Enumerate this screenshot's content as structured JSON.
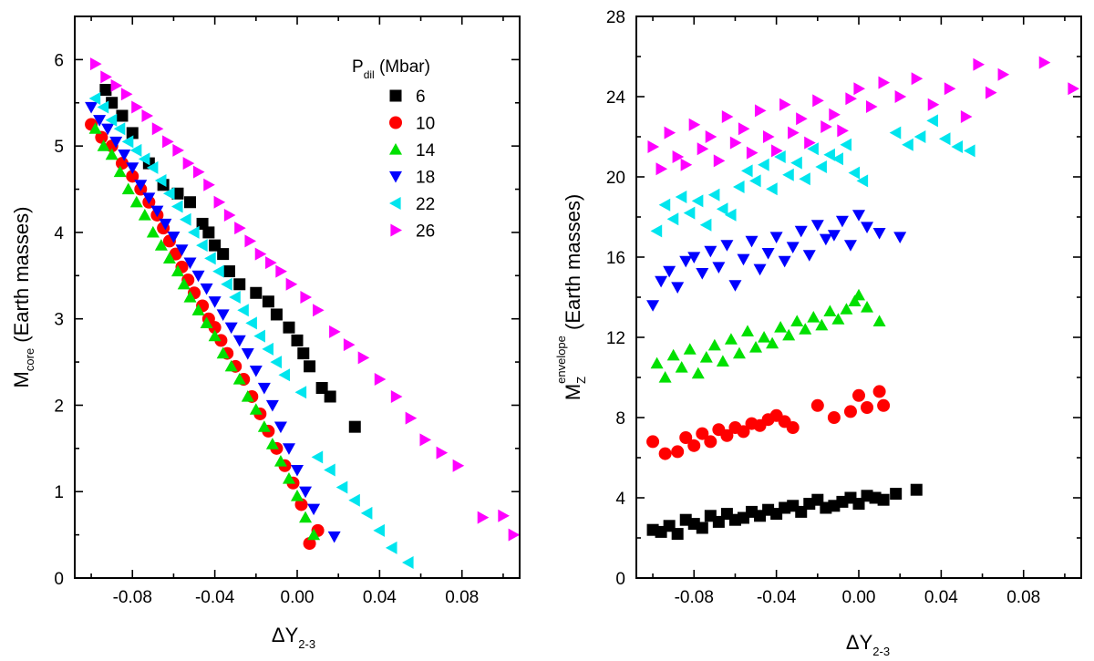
{
  "chart_data": [
    {
      "type": "scatter",
      "panel": "left",
      "title": "",
      "xlabel": {
        "main": "ΔY",
        "sub": "2-3"
      },
      "ylabel": {
        "main": "M",
        "sub": "core",
        "rest": " (Earth masses)"
      },
      "xlim": [
        -0.108,
        0.108
      ],
      "ylim": [
        0,
        6.5
      ],
      "xticks": [
        -0.08,
        -0.04,
        0.0,
        0.04,
        0.08
      ],
      "xtick_labels": [
        "-0.08",
        "-0.04",
        "0.00",
        "0.04",
        "0.08"
      ],
      "xticks_minor": [
        -0.1,
        -0.06,
        -0.02,
        0.02,
        0.06,
        0.1
      ],
      "yticks": [
        0,
        1,
        2,
        3,
        4,
        5,
        6
      ],
      "ytick_labels": [
        "0",
        "1",
        "2",
        "3",
        "4",
        "5",
        "6"
      ],
      "yticks_minor": [
        0.5,
        1.5,
        2.5,
        3.5,
        4.5,
        5.5,
        6.5
      ],
      "legend": {
        "title_main": "P",
        "title_sub": "dil",
        "title_rest": " (Mbar)",
        "position": "top-right",
        "entries": [
          "6",
          "10",
          "14",
          "18",
          "22",
          "26"
        ]
      },
      "series": [
        {
          "name": "6",
          "marker": "square",
          "color": "#000000",
          "x": [
            -0.093,
            -0.09,
            -0.085,
            -0.08,
            -0.072,
            -0.065,
            -0.058,
            -0.052,
            -0.046,
            -0.043,
            -0.04,
            -0.036,
            -0.033,
            -0.028,
            -0.02,
            -0.014,
            -0.01,
            -0.004,
            0.0,
            0.003,
            0.006,
            0.012,
            0.016,
            0.028
          ],
          "y": [
            5.65,
            5.5,
            5.35,
            5.15,
            4.8,
            4.55,
            4.45,
            4.35,
            4.1,
            4.0,
            3.85,
            3.75,
            3.55,
            3.4,
            3.3,
            3.2,
            3.05,
            2.9,
            2.75,
            2.6,
            2.45,
            2.2,
            2.1,
            1.75
          ]
        },
        {
          "name": "10",
          "marker": "circle",
          "color": "#ff0000",
          "x": [
            -0.1,
            -0.095,
            -0.09,
            -0.085,
            -0.08,
            -0.076,
            -0.072,
            -0.068,
            -0.065,
            -0.062,
            -0.059,
            -0.056,
            -0.053,
            -0.05,
            -0.046,
            -0.043,
            -0.04,
            -0.037,
            -0.034,
            -0.03,
            -0.026,
            -0.022,
            -0.018,
            -0.014,
            -0.01,
            -0.006,
            -0.002,
            0.002,
            0.006,
            0.01
          ],
          "y": [
            5.25,
            5.1,
            5.0,
            4.8,
            4.65,
            4.5,
            4.35,
            4.2,
            4.05,
            3.9,
            3.75,
            3.6,
            3.45,
            3.3,
            3.15,
            3.0,
            2.9,
            2.75,
            2.6,
            2.45,
            2.3,
            2.1,
            1.9,
            1.7,
            1.5,
            1.3,
            1.1,
            0.85,
            0.4,
            0.55
          ]
        },
        {
          "name": "14",
          "marker": "triangle-up",
          "color": "#00e000",
          "x": [
            -0.098,
            -0.094,
            -0.09,
            -0.086,
            -0.082,
            -0.078,
            -0.074,
            -0.07,
            -0.066,
            -0.062,
            -0.058,
            -0.055,
            -0.052,
            -0.048,
            -0.044,
            -0.04,
            -0.036,
            -0.032,
            -0.028,
            -0.024,
            -0.02,
            -0.016,
            -0.012,
            -0.008,
            -0.004,
            0.0,
            0.004,
            0.008
          ],
          "y": [
            5.2,
            5.0,
            4.9,
            4.7,
            4.5,
            4.35,
            4.2,
            4.0,
            3.85,
            3.7,
            3.55,
            3.4,
            3.25,
            3.1,
            2.95,
            2.8,
            2.6,
            2.45,
            2.3,
            2.1,
            1.95,
            1.75,
            1.55,
            1.35,
            1.15,
            0.95,
            0.7,
            0.5
          ]
        },
        {
          "name": "18",
          "marker": "triangle-down",
          "color": "#0000ff",
          "x": [
            -0.1,
            -0.096,
            -0.092,
            -0.088,
            -0.084,
            -0.08,
            -0.076,
            -0.072,
            -0.068,
            -0.064,
            -0.06,
            -0.056,
            -0.052,
            -0.048,
            -0.044,
            -0.04,
            -0.036,
            -0.032,
            -0.028,
            -0.024,
            -0.02,
            -0.016,
            -0.012,
            -0.008,
            -0.004,
            0.0,
            0.004,
            0.008,
            0.018
          ],
          "y": [
            5.45,
            5.3,
            5.2,
            5.05,
            4.9,
            4.75,
            4.55,
            4.4,
            4.25,
            4.1,
            3.95,
            3.8,
            3.65,
            3.5,
            3.35,
            3.2,
            3.05,
            2.9,
            2.75,
            2.6,
            2.4,
            2.2,
            2.0,
            1.75,
            1.5,
            1.25,
            1.0,
            0.8,
            0.48
          ]
        },
        {
          "name": "22",
          "marker": "triangle-left",
          "color": "#00e5ee",
          "x": [
            -0.098,
            -0.094,
            -0.09,
            -0.086,
            -0.082,
            -0.078,
            -0.074,
            -0.07,
            -0.066,
            -0.062,
            -0.058,
            -0.054,
            -0.05,
            -0.046,
            -0.042,
            -0.038,
            -0.034,
            -0.03,
            -0.026,
            -0.022,
            -0.018,
            -0.014,
            -0.01,
            -0.006,
            0.002,
            0.01,
            0.016,
            0.022,
            0.028,
            0.034,
            0.04,
            0.046,
            0.054
          ],
          "y": [
            5.55,
            5.45,
            5.3,
            5.2,
            5.05,
            4.95,
            4.85,
            4.75,
            4.6,
            4.45,
            4.3,
            4.15,
            4.0,
            3.85,
            3.7,
            3.55,
            3.4,
            3.25,
            3.1,
            2.95,
            2.8,
            2.65,
            2.5,
            2.35,
            2.15,
            1.4,
            1.25,
            1.05,
            0.9,
            0.75,
            0.55,
            0.35,
            0.18
          ]
        },
        {
          "name": "26",
          "marker": "triangle-right",
          "color": "#ff00ff",
          "x": [
            -0.098,
            -0.093,
            -0.088,
            -0.083,
            -0.078,
            -0.073,
            -0.068,
            -0.063,
            -0.058,
            -0.053,
            -0.048,
            -0.043,
            -0.038,
            -0.033,
            -0.028,
            -0.023,
            -0.018,
            -0.013,
            -0.008,
            -0.003,
            0.004,
            0.01,
            0.018,
            0.025,
            0.032,
            0.04,
            0.048,
            0.055,
            0.062,
            0.07,
            0.078,
            0.09,
            0.1,
            0.105
          ],
          "y": [
            5.95,
            5.8,
            5.7,
            5.6,
            5.45,
            5.35,
            5.2,
            5.05,
            4.95,
            4.8,
            4.7,
            4.55,
            4.35,
            4.2,
            4.05,
            3.9,
            3.75,
            3.65,
            3.55,
            3.4,
            3.25,
            3.1,
            2.85,
            2.7,
            2.55,
            2.3,
            2.1,
            1.85,
            1.6,
            1.45,
            1.3,
            0.7,
            0.72,
            0.5
          ]
        }
      ]
    },
    {
      "type": "scatter",
      "panel": "right",
      "title": "",
      "xlabel": {
        "main": "ΔY",
        "sub": "2-3"
      },
      "ylabel": {
        "main": "M",
        "sub": "Z",
        "sup": "envelope",
        "rest": " (Earth masses)"
      },
      "xlim": [
        -0.108,
        0.108
      ],
      "ylim": [
        0,
        28
      ],
      "xticks": [
        -0.08,
        -0.04,
        0.0,
        0.04,
        0.08
      ],
      "xtick_labels": [
        "-0.08",
        "-0.04",
        "0.00",
        "0.04",
        "0.08"
      ],
      "xticks_minor": [
        -0.1,
        -0.06,
        -0.02,
        0.02,
        0.06,
        0.1
      ],
      "yticks": [
        0,
        4,
        8,
        12,
        16,
        20,
        24,
        28
      ],
      "ytick_labels": [
        "0",
        "4",
        "8",
        "12",
        "16",
        "20",
        "24",
        "28"
      ],
      "yticks_minor": [
        2,
        6,
        10,
        14,
        18,
        22,
        26
      ],
      "series": [
        {
          "name": "6",
          "marker": "square",
          "color": "#000000",
          "x": [
            -0.1,
            -0.096,
            -0.092,
            -0.088,
            -0.084,
            -0.08,
            -0.076,
            -0.072,
            -0.068,
            -0.064,
            -0.06,
            -0.056,
            -0.052,
            -0.048,
            -0.044,
            -0.04,
            -0.036,
            -0.032,
            -0.028,
            -0.024,
            -0.02,
            -0.016,
            -0.012,
            -0.008,
            -0.004,
            0.0,
            0.004,
            0.008,
            0.012,
            0.018,
            0.028
          ],
          "y": [
            2.4,
            2.3,
            2.6,
            2.2,
            2.9,
            2.7,
            2.5,
            3.1,
            2.8,
            3.2,
            2.9,
            3.0,
            3.3,
            3.1,
            3.4,
            3.2,
            3.5,
            3.6,
            3.3,
            3.7,
            3.9,
            3.5,
            3.6,
            3.8,
            4.0,
            3.7,
            4.1,
            4.0,
            3.9,
            4.2,
            4.4
          ]
        },
        {
          "name": "10",
          "marker": "circle",
          "color": "#ff0000",
          "x": [
            -0.1,
            -0.094,
            -0.088,
            -0.084,
            -0.08,
            -0.076,
            -0.072,
            -0.068,
            -0.064,
            -0.06,
            -0.056,
            -0.052,
            -0.048,
            -0.044,
            -0.04,
            -0.036,
            -0.032,
            -0.02,
            -0.012,
            -0.004,
            0.0,
            0.004,
            0.01,
            0.012
          ],
          "y": [
            6.8,
            6.2,
            6.3,
            7.0,
            6.6,
            7.2,
            6.8,
            7.4,
            7.1,
            7.5,
            7.3,
            7.7,
            7.6,
            7.9,
            8.1,
            7.8,
            7.5,
            8.6,
            8.0,
            8.3,
            9.1,
            8.5,
            9.3,
            8.6
          ]
        },
        {
          "name": "14",
          "marker": "triangle-up",
          "color": "#00e000",
          "x": [
            -0.098,
            -0.094,
            -0.09,
            -0.086,
            -0.082,
            -0.078,
            -0.074,
            -0.07,
            -0.066,
            -0.062,
            -0.058,
            -0.054,
            -0.05,
            -0.046,
            -0.042,
            -0.038,
            -0.034,
            -0.03,
            -0.026,
            -0.022,
            -0.018,
            -0.014,
            -0.01,
            -0.006,
            -0.002,
            0.0,
            0.004,
            0.01
          ],
          "y": [
            10.7,
            10.0,
            11.1,
            10.5,
            11.4,
            10.2,
            11.0,
            11.6,
            10.8,
            11.9,
            11.2,
            12.3,
            11.5,
            12.0,
            11.7,
            12.5,
            12.1,
            12.8,
            12.4,
            13.0,
            12.6,
            13.3,
            12.9,
            13.4,
            13.8,
            14.1,
            13.5,
            12.8
          ]
        },
        {
          "name": "18",
          "marker": "triangle-down",
          "color": "#0000ff",
          "x": [
            -0.1,
            -0.096,
            -0.092,
            -0.088,
            -0.084,
            -0.08,
            -0.076,
            -0.072,
            -0.068,
            -0.064,
            -0.06,
            -0.056,
            -0.052,
            -0.048,
            -0.044,
            -0.04,
            -0.036,
            -0.032,
            -0.028,
            -0.024,
            -0.02,
            -0.016,
            -0.012,
            -0.008,
            -0.004,
            0.0,
            0.004,
            0.01,
            0.02
          ],
          "y": [
            13.6,
            14.8,
            15.3,
            14.5,
            15.8,
            16.0,
            15.2,
            16.3,
            15.5,
            16.6,
            14.6,
            15.9,
            16.8,
            15.4,
            16.2,
            17.0,
            15.8,
            16.5,
            17.3,
            16.1,
            17.6,
            16.9,
            17.1,
            17.8,
            16.6,
            18.1,
            17.5,
            17.2,
            17.0
          ]
        },
        {
          "name": "22",
          "marker": "triangle-left",
          "color": "#00e5ee",
          "x": [
            -0.098,
            -0.094,
            -0.09,
            -0.086,
            -0.082,
            -0.078,
            -0.074,
            -0.07,
            -0.066,
            -0.062,
            -0.058,
            -0.054,
            -0.05,
            -0.046,
            -0.042,
            -0.038,
            -0.034,
            -0.03,
            -0.026,
            -0.022,
            -0.018,
            -0.014,
            -0.01,
            -0.006,
            -0.002,
            0.002,
            0.018,
            0.024,
            0.03,
            0.036,
            0.042,
            0.048,
            0.054
          ],
          "y": [
            17.3,
            18.6,
            17.9,
            19.0,
            18.2,
            18.8,
            17.6,
            19.1,
            18.4,
            18.1,
            19.5,
            20.3,
            19.8,
            20.6,
            19.4,
            21.0,
            20.1,
            20.7,
            19.9,
            21.4,
            20.5,
            21.1,
            20.9,
            21.6,
            20.2,
            19.8,
            22.2,
            21.6,
            22.0,
            22.8,
            21.9,
            21.5,
            21.3
          ]
        },
        {
          "name": "26",
          "marker": "triangle-right",
          "color": "#ff00ff",
          "x": [
            -0.1,
            -0.096,
            -0.092,
            -0.088,
            -0.084,
            -0.08,
            -0.076,
            -0.072,
            -0.068,
            -0.064,
            -0.06,
            -0.056,
            -0.052,
            -0.048,
            -0.044,
            -0.04,
            -0.036,
            -0.032,
            -0.028,
            -0.024,
            -0.02,
            -0.016,
            -0.012,
            -0.008,
            -0.004,
            0.0,
            0.006,
            0.012,
            0.02,
            0.028,
            0.036,
            0.044,
            0.052,
            0.058,
            0.064,
            0.07,
            0.09,
            0.104
          ],
          "y": [
            21.5,
            20.4,
            22.2,
            21.0,
            20.6,
            22.6,
            21.4,
            22.0,
            20.8,
            23.0,
            21.7,
            22.4,
            21.2,
            23.3,
            22.0,
            21.3,
            23.6,
            22.2,
            22.9,
            21.7,
            23.8,
            22.5,
            23.1,
            22.3,
            23.9,
            24.4,
            23.5,
            24.7,
            24.0,
            24.9,
            23.6,
            24.4,
            23.0,
            25.6,
            24.2,
            25.1,
            25.7,
            24.4
          ]
        }
      ]
    }
  ]
}
